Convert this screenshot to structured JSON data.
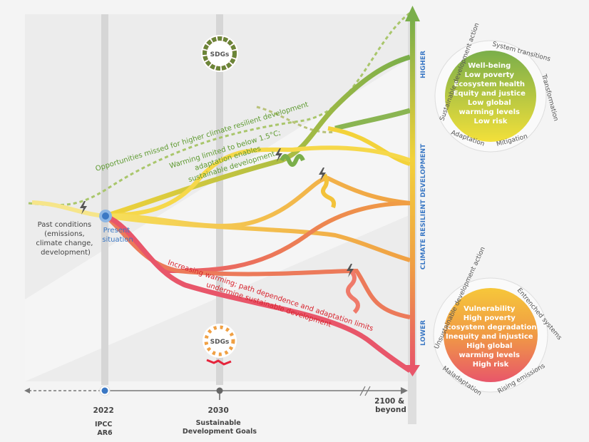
{
  "labels": {
    "past_conditions": [
      "Past conditions",
      "(emissions,",
      "climate change,",
      "development)"
    ],
    "present_situation": [
      "Present",
      "situation"
    ],
    "opportunities_missed": "Opportunities missed for higher climate resilient development",
    "warming_limited": [
      "Warming limited to below 1.5°C;",
      "adaptation enables",
      "sustainable development"
    ],
    "increasing_warming": [
      "Increasing warming; path dependence and adaptation limits",
      "undermine sustainable development"
    ],
    "sdgs_badge": "SDGs"
  },
  "axis": {
    "ticks": [
      {
        "year": "2022",
        "caption": [
          "IPCC",
          "AR6"
        ]
      },
      {
        "year": "2030",
        "caption": [
          "Sustainable",
          "Development Goals"
        ]
      },
      {
        "year": "2100 &",
        "caption": [
          "beyond"
        ]
      }
    ]
  },
  "scale": {
    "title": "CLIMATE RESILIENT DEVELOPMENT",
    "high": "HIGHER",
    "low": "LOWER"
  },
  "high_outcome": {
    "center": [
      "Well-being",
      "Low poverty",
      "Ecosystem health",
      "Equity and justice",
      "Low global",
      "warming levels",
      "Low risk"
    ],
    "ring": [
      "Sustainable development action",
      "System transitions",
      "Transformation",
      "Mitigation",
      "Adaptation"
    ]
  },
  "low_outcome": {
    "center": [
      "Vulnerability",
      "High poverty",
      "Ecosystem degradation",
      "Inequity and injustice",
      "High global",
      "warming levels",
      "High risk"
    ],
    "ring": [
      "Unsustainable development action",
      "Entrenched systems",
      "Rising emissions",
      "Maladaptation"
    ]
  },
  "colors": {
    "green": "#7aae4a",
    "yellow": "#f3d23a",
    "orange": "#f0a043",
    "red": "#e8566a",
    "blue": "#3b78c4"
  }
}
